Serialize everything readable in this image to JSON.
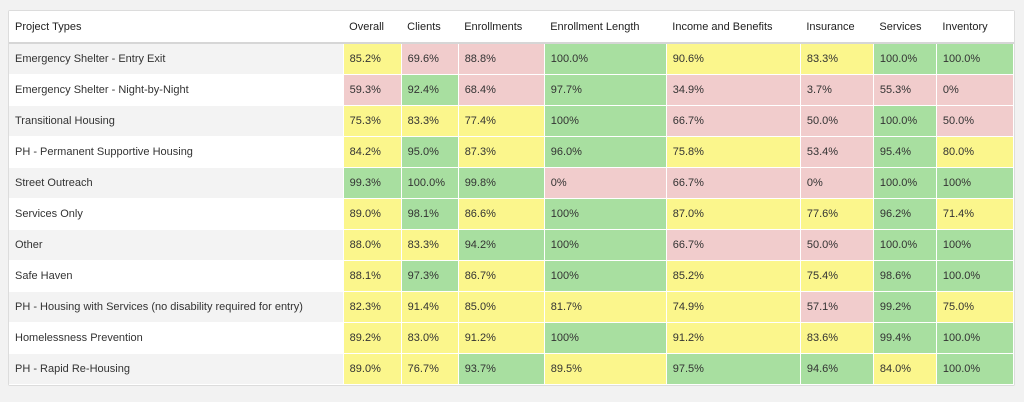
{
  "table": {
    "headers": [
      "Project Types",
      "Overall",
      "Clients",
      "Enrollments",
      "Enrollment Length",
      "Income and Benefits",
      "Insurance",
      "Services",
      "Inventory"
    ],
    "colors": {
      "green": "#a8dfa0",
      "yellow": "#fbf68c",
      "red": "#f1cccc"
    },
    "rows": [
      {
        "label": "Emergency Shelter - Entry Exit",
        "cells": [
          {
            "v": "85.2%",
            "c": "y"
          },
          {
            "v": "69.6%",
            "c": "r"
          },
          {
            "v": "88.8%",
            "c": "r"
          },
          {
            "v": "100.0%",
            "c": "g"
          },
          {
            "v": "90.6%",
            "c": "y"
          },
          {
            "v": "83.3%",
            "c": "y"
          },
          {
            "v": "100.0%",
            "c": "g"
          },
          {
            "v": "100.0%",
            "c": "g"
          }
        ]
      },
      {
        "label": "Emergency Shelter - Night-by-Night",
        "cells": [
          {
            "v": "59.3%",
            "c": "r"
          },
          {
            "v": "92.4%",
            "c": "g"
          },
          {
            "v": "68.4%",
            "c": "r"
          },
          {
            "v": "97.7%",
            "c": "g"
          },
          {
            "v": "34.9%",
            "c": "r"
          },
          {
            "v": "3.7%",
            "c": "r"
          },
          {
            "v": "55.3%",
            "c": "r"
          },
          {
            "v": "0%",
            "c": "r"
          }
        ]
      },
      {
        "label": "Transitional Housing",
        "cells": [
          {
            "v": "75.3%",
            "c": "y"
          },
          {
            "v": "83.3%",
            "c": "y"
          },
          {
            "v": "77.4%",
            "c": "y"
          },
          {
            "v": "100%",
            "c": "g"
          },
          {
            "v": "66.7%",
            "c": "r"
          },
          {
            "v": "50.0%",
            "c": "r"
          },
          {
            "v": "100.0%",
            "c": "g"
          },
          {
            "v": "50.0%",
            "c": "r"
          }
        ]
      },
      {
        "label": "PH - Permanent Supportive Housing",
        "cells": [
          {
            "v": "84.2%",
            "c": "y"
          },
          {
            "v": "95.0%",
            "c": "g"
          },
          {
            "v": "87.3%",
            "c": "y"
          },
          {
            "v": "96.0%",
            "c": "g"
          },
          {
            "v": "75.8%",
            "c": "y"
          },
          {
            "v": "53.4%",
            "c": "r"
          },
          {
            "v": "95.4%",
            "c": "g"
          },
          {
            "v": "80.0%",
            "c": "y"
          }
        ]
      },
      {
        "label": "Street Outreach",
        "cells": [
          {
            "v": "99.3%",
            "c": "g"
          },
          {
            "v": "100.0%",
            "c": "g"
          },
          {
            "v": "99.8%",
            "c": "g"
          },
          {
            "v": "0%",
            "c": "r"
          },
          {
            "v": "66.7%",
            "c": "r"
          },
          {
            "v": "0%",
            "c": "r"
          },
          {
            "v": "100.0%",
            "c": "g"
          },
          {
            "v": "100%",
            "c": "g"
          }
        ]
      },
      {
        "label": "Services Only",
        "cells": [
          {
            "v": "89.0%",
            "c": "y"
          },
          {
            "v": "98.1%",
            "c": "g"
          },
          {
            "v": "86.6%",
            "c": "y"
          },
          {
            "v": "100%",
            "c": "g"
          },
          {
            "v": "87.0%",
            "c": "y"
          },
          {
            "v": "77.6%",
            "c": "y"
          },
          {
            "v": "96.2%",
            "c": "g"
          },
          {
            "v": "71.4%",
            "c": "y"
          }
        ]
      },
      {
        "label": "Other",
        "cells": [
          {
            "v": "88.0%",
            "c": "y"
          },
          {
            "v": "83.3%",
            "c": "y"
          },
          {
            "v": "94.2%",
            "c": "g"
          },
          {
            "v": "100%",
            "c": "g"
          },
          {
            "v": "66.7%",
            "c": "r"
          },
          {
            "v": "50.0%",
            "c": "r"
          },
          {
            "v": "100.0%",
            "c": "g"
          },
          {
            "v": "100%",
            "c": "g"
          }
        ]
      },
      {
        "label": "Safe Haven",
        "cells": [
          {
            "v": "88.1%",
            "c": "y"
          },
          {
            "v": "97.3%",
            "c": "g"
          },
          {
            "v": "86.7%",
            "c": "y"
          },
          {
            "v": "100%",
            "c": "g"
          },
          {
            "v": "85.2%",
            "c": "y"
          },
          {
            "v": "75.4%",
            "c": "y"
          },
          {
            "v": "98.6%",
            "c": "g"
          },
          {
            "v": "100.0%",
            "c": "g"
          }
        ]
      },
      {
        "label": "PH - Housing with Services (no disability required for entry)",
        "cells": [
          {
            "v": "82.3%",
            "c": "y"
          },
          {
            "v": "91.4%",
            "c": "y"
          },
          {
            "v": "85.0%",
            "c": "y"
          },
          {
            "v": "81.7%",
            "c": "y"
          },
          {
            "v": "74.9%",
            "c": "y"
          },
          {
            "v": "57.1%",
            "c": "r"
          },
          {
            "v": "99.2%",
            "c": "g"
          },
          {
            "v": "75.0%",
            "c": "y"
          }
        ]
      },
      {
        "label": "Homelessness Prevention",
        "cells": [
          {
            "v": "89.2%",
            "c": "y"
          },
          {
            "v": "83.0%",
            "c": "y"
          },
          {
            "v": "91.2%",
            "c": "y"
          },
          {
            "v": "100%",
            "c": "g"
          },
          {
            "v": "91.2%",
            "c": "y"
          },
          {
            "v": "83.6%",
            "c": "y"
          },
          {
            "v": "99.4%",
            "c": "g"
          },
          {
            "v": "100.0%",
            "c": "g"
          }
        ]
      },
      {
        "label": "PH - Rapid Re-Housing",
        "cells": [
          {
            "v": "89.0%",
            "c": "y"
          },
          {
            "v": "76.7%",
            "c": "y"
          },
          {
            "v": "93.7%",
            "c": "g"
          },
          {
            "v": "89.5%",
            "c": "y"
          },
          {
            "v": "97.5%",
            "c": "g"
          },
          {
            "v": "94.6%",
            "c": "g"
          },
          {
            "v": "84.0%",
            "c": "y"
          },
          {
            "v": "100.0%",
            "c": "g"
          }
        ]
      }
    ]
  }
}
